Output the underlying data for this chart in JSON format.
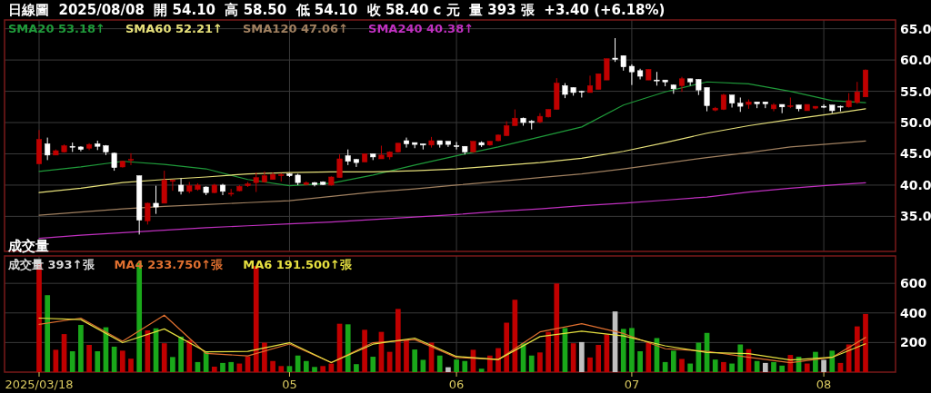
{
  "chart_data": [
    {
      "type": "candlestick",
      "title": "日線圖  2025/08/08  開 54.10  高 58.50  低 54.10  收 58.40 c 元  量 393 張  +3.40 (+6.18%)",
      "categories": [
        "2025/03/18",
        null,
        null,
        null,
        null,
        null,
        null,
        null,
        null,
        null,
        null,
        null,
        null,
        null,
        null,
        null,
        null,
        null,
        null,
        null,
        null,
        null,
        null,
        null,
        null,
        null,
        null,
        null,
        null,
        null,
        "05",
        null,
        null,
        null,
        null,
        null,
        null,
        null,
        null,
        null,
        null,
        null,
        null,
        null,
        null,
        null,
        null,
        null,
        null,
        null,
        "06",
        null,
        null,
        null,
        null,
        null,
        null,
        null,
        null,
        null,
        null,
        null,
        null,
        null,
        null,
        null,
        null,
        null,
        null,
        null,
        null,
        "07",
        null,
        null,
        null,
        null,
        null,
        null,
        null,
        null,
        null,
        null,
        null,
        null,
        null,
        null,
        null,
        null,
        null,
        null,
        null,
        null,
        null,
        null,
        "08",
        null,
        null,
        null,
        null,
        null
      ],
      "ohlc": [
        [
          43.4,
          48.8,
          43.4,
          47.3
        ],
        [
          46.6,
          47.6,
          44.0,
          44.8
        ],
        [
          44.8,
          45.7,
          44.8,
          45.5
        ],
        [
          45.3,
          46.5,
          45.2,
          46.3
        ],
        [
          46.2,
          46.8,
          45.3,
          46.1
        ],
        [
          46.1,
          46.2,
          45.4,
          45.7
        ],
        [
          45.9,
          46.7,
          45.6,
          46.5
        ],
        [
          46.6,
          47.1,
          45.6,
          46.2
        ],
        [
          46.3,
          46.4,
          44.8,
          45.3
        ],
        [
          45.1,
          45.2,
          42.3,
          42.8
        ],
        [
          42.9,
          43.9,
          42.8,
          43.8
        ],
        [
          44.0,
          45.1,
          43.2,
          44.1
        ],
        [
          41.5,
          41.5,
          32.1,
          34.4
        ],
        [
          34.3,
          37.2,
          33.7,
          37.1
        ],
        [
          37.1,
          39.9,
          35.4,
          36.5
        ],
        [
          37.1,
          42.3,
          37.1,
          40.8
        ],
        [
          40.6,
          40.8,
          39.1,
          40.8
        ],
        [
          40.0,
          41.1,
          38.5,
          39.0
        ],
        [
          39.0,
          40.5,
          38.7,
          39.9
        ],
        [
          39.3,
          40.3,
          39.1,
          40.0
        ],
        [
          39.7,
          39.8,
          38.4,
          38.8
        ],
        [
          38.8,
          40.2,
          38.7,
          40.0
        ],
        [
          40.0,
          40.2,
          38.4,
          39.0
        ],
        [
          38.6,
          39.4,
          38.2,
          38.7
        ],
        [
          39.1,
          40.0,
          39.0,
          39.8
        ],
        [
          39.9,
          40.5,
          39.7,
          40.2
        ],
        [
          40.4,
          42.0,
          38.9,
          41.2
        ],
        [
          40.5,
          42.2,
          40.4,
          41.5
        ],
        [
          40.9,
          42.0,
          40.9,
          41.7
        ],
        [
          41.5,
          41.9,
          40.6,
          41.7
        ],
        [
          41.8,
          41.9,
          41.3,
          41.5
        ],
        [
          41.6,
          41.8,
          40.0,
          40.4
        ],
        [
          40.1,
          40.6,
          40.0,
          40.4
        ],
        [
          40.4,
          40.5,
          39.8,
          40.1
        ],
        [
          40.5,
          40.6,
          40.0,
          40.1
        ],
        [
          40.0,
          41.4,
          39.9,
          41.3
        ],
        [
          41.2,
          44.9,
          41.2,
          44.2
        ],
        [
          44.7,
          45.7,
          43.2,
          43.8
        ],
        [
          44.1,
          44.2,
          42.9,
          43.6
        ],
        [
          43.7,
          45.0,
          43.7,
          45.0
        ],
        [
          45.0,
          45.0,
          44.0,
          44.5
        ],
        [
          44.2,
          46.3,
          44.2,
          44.8
        ],
        [
          44.5,
          45.4,
          44.1,
          45.3
        ],
        [
          45.3,
          46.7,
          45.2,
          46.7
        ],
        [
          47.1,
          47.6,
          46.0,
          46.6
        ],
        [
          46.8,
          46.8,
          45.9,
          46.5
        ],
        [
          46.6,
          46.6,
          45.7,
          46.4
        ],
        [
          46.4,
          47.7,
          46.0,
          47.1
        ],
        [
          47.1,
          47.1,
          46.0,
          46.5
        ],
        [
          47.0,
          47.0,
          46.1,
          46.5
        ],
        [
          46.3,
          46.9,
          45.7,
          46.2
        ],
        [
          46.2,
          46.2,
          44.9,
          45.3
        ],
        [
          45.3,
          47.0,
          45.2,
          47.0
        ],
        [
          46.8,
          47.0,
          46.1,
          46.4
        ],
        [
          46.4,
          47.0,
          46.3,
          47.0
        ],
        [
          47.1,
          48.1,
          47.0,
          48.0
        ],
        [
          47.9,
          50.2,
          47.9,
          49.5
        ],
        [
          49.5,
          52.1,
          49.5,
          50.7
        ],
        [
          50.7,
          50.8,
          49.5,
          50.0
        ],
        [
          50.2,
          50.4,
          48.9,
          50.0
        ],
        [
          50.1,
          51.5,
          49.9,
          51.0
        ],
        [
          50.9,
          52.1,
          50.8,
          52.1
        ],
        [
          52.1,
          57.1,
          52.1,
          56.3
        ],
        [
          55.9,
          56.3,
          53.9,
          54.5
        ],
        [
          55.6,
          55.6,
          54.3,
          54.8
        ],
        [
          55.0,
          55.1,
          54.0,
          54.9
        ],
        [
          54.8,
          57.5,
          54.8,
          55.9
        ],
        [
          55.3,
          57.8,
          55.3,
          57.8
        ],
        [
          56.8,
          60.2,
          56.8,
          60.2
        ],
        [
          60.3,
          63.5,
          59.7,
          60.1
        ],
        [
          60.7,
          60.7,
          58.3,
          58.9
        ],
        [
          59.0,
          59.3,
          56.0,
          58.1
        ],
        [
          58.3,
          58.6,
          56.9,
          57.4
        ],
        [
          56.8,
          58.5,
          56.8,
          58.5
        ],
        [
          56.8,
          58.1,
          55.9,
          56.7
        ],
        [
          56.8,
          56.8,
          55.8,
          56.5
        ],
        [
          56.0,
          56.1,
          54.6,
          55.4
        ],
        [
          55.9,
          57.3,
          54.9,
          57.0
        ],
        [
          57.0,
          57.0,
          55.9,
          56.5
        ],
        [
          56.9,
          56.9,
          54.4,
          55.2
        ],
        [
          55.6,
          55.6,
          51.8,
          52.7
        ],
        [
          52.0,
          52.5,
          51.8,
          52.3
        ],
        [
          52.1,
          54.6,
          52.0,
          54.4
        ],
        [
          54.4,
          54.4,
          52.4,
          53.1
        ],
        [
          53.1,
          54.0,
          51.7,
          52.6
        ],
        [
          52.9,
          53.7,
          52.2,
          53.3
        ],
        [
          53.3,
          53.3,
          52.3,
          53.0
        ],
        [
          53.3,
          53.3,
          52.3,
          53.0
        ],
        [
          52.2,
          53.1,
          51.8,
          52.8
        ],
        [
          52.9,
          52.9,
          51.5,
          52.5
        ],
        [
          52.6,
          54.0,
          52.3,
          52.7
        ],
        [
          52.8,
          52.8,
          51.8,
          52.2
        ],
        [
          51.9,
          52.9,
          51.9,
          52.9
        ],
        [
          52.3,
          52.6,
          52.1,
          52.6
        ],
        [
          52.6,
          52.9,
          52.3,
          52.5
        ],
        [
          52.8,
          52.8,
          51.5,
          51.9
        ],
        [
          52.6,
          52.7,
          51.8,
          52.5
        ],
        [
          52.5,
          54.7,
          52.4,
          53.5
        ],
        [
          53.2,
          56.5,
          53.0,
          54.9
        ],
        [
          54.1,
          58.5,
          54.1,
          58.4
        ]
      ],
      "colors": [
        "#c00000",
        "#ffffff",
        "#c00000",
        "#c00000",
        "#ffffff",
        "#ffffff",
        "#c00000",
        "#ffffff",
        "#ffffff",
        "#ffffff",
        "#c00000",
        "#c00000",
        "#ffffff",
        "#c00000",
        "#ffffff",
        "#c00000",
        "#c00000",
        "#ffffff",
        "#c00000",
        "#c00000",
        "#ffffff",
        "#c00000",
        "#ffffff",
        "#c00000",
        "#c00000",
        "#c00000",
        "#c00000",
        "#c00000",
        "#c00000",
        "#c00000",
        "#ffffff",
        "#ffffff",
        "#c00000",
        "#ffffff",
        "#ffffff",
        "#c00000",
        "#c00000",
        "#ffffff",
        "#ffffff",
        "#c00000",
        "#ffffff",
        "#c00000",
        "#c00000",
        "#c00000",
        "#ffffff",
        "#ffffff",
        "#ffffff",
        "#c00000",
        "#ffffff",
        "#ffffff",
        "#ffffff",
        "#ffffff",
        "#c00000",
        "#ffffff",
        "#c00000",
        "#c00000",
        "#c00000",
        "#c00000",
        "#ffffff",
        "#ffffff",
        "#c00000",
        "#c00000",
        "#c00000",
        "#ffffff",
        "#ffffff",
        "#ffffff",
        "#c00000",
        "#c00000",
        "#c00000",
        "#ffffff",
        "#ffffff",
        "#ffffff",
        "#ffffff",
        "#c00000",
        "#ffffff",
        "#ffffff",
        "#ffffff",
        "#c00000",
        "#ffffff",
        "#ffffff",
        "#ffffff",
        "#c00000",
        "#c00000",
        "#ffffff",
        "#ffffff",
        "#c00000",
        "#ffffff",
        "#ffffff",
        "#c00000",
        "#ffffff",
        "#c00000",
        "#ffffff",
        "#c00000",
        "#c00000",
        "#ffffff",
        "#ffffff",
        "#ffffff",
        "#c00000",
        "#c00000",
        "#c00000"
      ],
      "series": [
        {
          "name": "SMA20 53.18↑",
          "type": "line",
          "color": "#1f9a3a",
          "values": [
            42.2,
            null,
            null,
            null,
            null,
            42.9,
            null,
            null,
            null,
            null,
            43.8,
            null,
            null,
            null,
            null,
            43.3,
            null,
            null,
            null,
            null,
            42.6,
            null,
            null,
            null,
            null,
            40.9,
            null,
            null,
            null,
            null,
            39.9,
            null,
            null,
            null,
            null,
            40.3,
            null,
            null,
            null,
            null,
            41.6,
            null,
            null,
            null,
            null,
            43.2,
            null,
            null,
            null,
            null,
            44.7,
            null,
            null,
            null,
            null,
            46.1,
            null,
            null,
            null,
            null,
            47.7,
            null,
            null,
            null,
            null,
            49.3,
            null,
            null,
            null,
            null,
            52.8,
            null,
            null,
            null,
            null,
            54.9,
            null,
            null,
            null,
            null,
            56.5,
            null,
            null,
            null,
            null,
            56.2,
            null,
            null,
            null,
            null,
            55.0,
            null,
            null,
            null,
            null,
            53.5,
            null,
            null,
            null,
            53.18
          ]
        },
        {
          "name": "SMA60 52.21↑",
          "type": "line",
          "color": "#e6e07a",
          "values": [
            38.8,
            null,
            null,
            null,
            null,
            39.5,
            null,
            null,
            null,
            null,
            40.4,
            null,
            null,
            null,
            null,
            40.9,
            null,
            null,
            null,
            null,
            41.3,
            null,
            null,
            null,
            null,
            41.8,
            null,
            null,
            null,
            null,
            42.0,
            null,
            null,
            null,
            null,
            42.1,
            null,
            null,
            null,
            null,
            42.1,
            null,
            null,
            null,
            null,
            42.3,
            null,
            null,
            null,
            null,
            42.6,
            null,
            null,
            null,
            null,
            43.1,
            null,
            null,
            null,
            null,
            43.6,
            null,
            null,
            null,
            null,
            44.3,
            null,
            null,
            null,
            null,
            45.4,
            null,
            null,
            null,
            null,
            46.8,
            null,
            null,
            null,
            null,
            48.3,
            null,
            null,
            null,
            null,
            49.5,
            null,
            null,
            null,
            null,
            50.5,
            null,
            null,
            null,
            null,
            51.4,
            null,
            null,
            null,
            52.21
          ]
        },
        {
          "name": "SMA120 47.06↑",
          "type": "line",
          "color": "#a08060",
          "values": [
            35.2,
            null,
            null,
            null,
            null,
            35.7,
            null,
            null,
            null,
            null,
            36.2,
            null,
            null,
            null,
            null,
            36.6,
            null,
            null,
            null,
            null,
            36.9,
            null,
            null,
            null,
            null,
            37.2,
            null,
            null,
            null,
            null,
            37.5,
            null,
            null,
            null,
            null,
            38.2,
            null,
            null,
            null,
            null,
            38.9,
            null,
            null,
            null,
            null,
            39.4,
            null,
            null,
            null,
            null,
            40.0,
            null,
            null,
            null,
            null,
            40.6,
            null,
            null,
            null,
            null,
            41.2,
            null,
            null,
            null,
            null,
            41.8,
            null,
            null,
            null,
            null,
            42.6,
            null,
            null,
            null,
            null,
            43.5,
            null,
            null,
            null,
            null,
            44.4,
            null,
            null,
            null,
            null,
            45.2,
            null,
            null,
            null,
            null,
            46.1,
            null,
            null,
            null,
            null,
            46.6,
            null,
            null,
            null,
            47.06
          ]
        },
        {
          "name": "SMA240 40.38↑",
          "type": "line",
          "color": "#c030c0",
          "values": [
            31.5,
            null,
            null,
            null,
            null,
            32.0,
            null,
            null,
            null,
            null,
            32.4,
            null,
            null,
            null,
            null,
            32.8,
            null,
            null,
            null,
            null,
            33.2,
            null,
            null,
            null,
            null,
            33.5,
            null,
            null,
            null,
            null,
            33.8,
            null,
            null,
            null,
            null,
            34.1,
            null,
            null,
            null,
            null,
            34.5,
            null,
            null,
            null,
            null,
            34.9,
            null,
            null,
            null,
            null,
            35.3,
            null,
            null,
            null,
            null,
            35.8,
            null,
            null,
            null,
            null,
            36.2,
            null,
            null,
            null,
            null,
            36.7,
            null,
            null,
            null,
            null,
            37.1,
            null,
            null,
            null,
            null,
            37.6,
            null,
            null,
            null,
            null,
            38.1,
            null,
            null,
            null,
            null,
            38.9,
            null,
            null,
            null,
            null,
            39.5,
            null,
            null,
            null,
            null,
            40.0,
            null,
            null,
            null,
            40.38
          ]
        }
      ],
      "ylim": [
        29.4,
        66.4
      ],
      "yticks": [
        {
          "value": 35,
          "label": "35.0"
        },
        {
          "value": 40,
          "label": "40.0"
        },
        {
          "value": 45,
          "label": "45.0"
        },
        {
          "value": 50,
          "label": "50.0"
        },
        {
          "value": 55,
          "label": "55.0"
        },
        {
          "value": 60,
          "label": "60.0"
        },
        {
          "value": 65,
          "label": "65.0"
        }
      ],
      "grid": true,
      "legend": "top left",
      "tick_labels": "y"
    },
    {
      "type": "bar",
      "title": "成交量",
      "categories": [
        "2025/03/18",
        null,
        null,
        null,
        null,
        null,
        null,
        null,
        null,
        null,
        null,
        null,
        null,
        null,
        null,
        null,
        null,
        null,
        null,
        null,
        null,
        null,
        null,
        null,
        null,
        null,
        null,
        null,
        null,
        null,
        "05",
        null,
        null,
        null,
        null,
        null,
        null,
        null,
        null,
        null,
        null,
        null,
        null,
        null,
        null,
        null,
        null,
        null,
        null,
        null,
        "06",
        null,
        null,
        null,
        null,
        null,
        null,
        null,
        null,
        null,
        null,
        null,
        null,
        null,
        null,
        null,
        null,
        null,
        null,
        null,
        null,
        "07",
        null,
        null,
        null,
        null,
        null,
        null,
        null,
        null,
        null,
        null,
        null,
        null,
        null,
        null,
        null,
        null,
        null,
        null,
        null,
        null,
        null,
        null,
        "08",
        null,
        null,
        null,
        null,
        null
      ],
      "series": [
        {
          "name": "成交量 393↑張",
          "type": "bar",
          "values": [
            738,
            520,
            151,
            257,
            141,
            319,
            184,
            141,
            303,
            172,
            145,
            91,
            738,
            282,
            296,
            195,
            102,
            240,
            216,
            68,
            137,
            37,
            62,
            68,
            58,
            106,
            717,
            199,
            75,
            41,
            41,
            112,
            75,
            35,
            41,
            58,
            327,
            323,
            54,
            286,
            104,
            272,
            137,
            427,
            220,
            153,
            83,
            199,
            112,
            33,
            85,
            75,
            151,
            23,
            112,
            162,
            334,
            489,
            195,
            112,
            133,
            272,
            599,
            298,
            195,
            203,
            99,
            184,
            255,
            410,
            292,
            298,
            141,
            199,
            230,
            68,
            145,
            89,
            58,
            199,
            265,
            85,
            68,
            58,
            187,
            155,
            75,
            62,
            68,
            44,
            116,
            104,
            58,
            137,
            83,
            145,
            62,
            187,
            309,
            393
          ],
          "colors": [
            "#c00000",
            "#1aa81a",
            "#c00000",
            "#c00000",
            "#1aa81a",
            "#1aa81a",
            "#c00000",
            "#1aa81a",
            "#1aa81a",
            "#1aa81a",
            "#c00000",
            "#c00000",
            "#1aa81a",
            "#c00000",
            "#1aa81a",
            "#c00000",
            "#1aa81a",
            "#1aa81a",
            "#c00000",
            "#1aa81a",
            "#1aa81a",
            "#c00000",
            "#1aa81a",
            "#1aa81a",
            "#c00000",
            "#c00000",
            "#c00000",
            "#c00000",
            "#c00000",
            "#c00000",
            "#1aa81a",
            "#1aa81a",
            "#1aa81a",
            "#1aa81a",
            "#c00000",
            "#c00000",
            "#c00000",
            "#1aa81a",
            "#1aa81a",
            "#c00000",
            "#1aa81a",
            "#c00000",
            "#c00000",
            "#c00000",
            "#c00000",
            "#1aa81a",
            "#1aa81a",
            "#c00000",
            "#1aa81a",
            "#c0c0c0",
            "#1aa81a",
            "#1aa81a",
            "#c00000",
            "#1aa81a",
            "#c00000",
            "#c00000",
            "#c00000",
            "#c00000",
            "#1aa81a",
            "#1aa81a",
            "#c00000",
            "#c00000",
            "#c00000",
            "#1aa81a",
            "#c00000",
            "#c0c0c0",
            "#c00000",
            "#c00000",
            "#c00000",
            "#c0c0c0",
            "#1aa81a",
            "#1aa81a",
            "#1aa81a",
            "#c00000",
            "#1aa81a",
            "#1aa81a",
            "#1aa81a",
            "#c00000",
            "#1aa81a",
            "#1aa81a",
            "#1aa81a",
            "#1aa81a",
            "#c00000",
            "#1aa81a",
            "#1aa81a",
            "#c00000",
            "#1aa81a",
            "#c0c0c0",
            "#1aa81a",
            "#1aa81a",
            "#c00000",
            "#1aa81a",
            "#c00000",
            "#1aa81a",
            "#c0c0c0",
            "#1aa81a",
            "#c00000",
            "#c00000",
            "#c00000",
            "#c00000"
          ],
          "color": "#d8d8d8"
        },
        {
          "name": "MA4 233.750↑張",
          "type": "line",
          "color": "#e07030",
          "values": [
            323,
            null,
            null,
            null,
            null,
            365,
            null,
            null,
            null,
            null,
            209,
            null,
            null,
            null,
            null,
            385,
            null,
            null,
            null,
            null,
            126,
            null,
            null,
            null,
            null,
            110,
            null,
            null,
            null,
            null,
            190,
            null,
            null,
            null,
            null,
            64,
            null,
            null,
            null,
            null,
            199,
            null,
            null,
            null,
            null,
            220,
            null,
            null,
            null,
            null,
            99,
            null,
            null,
            null,
            null,
            85,
            null,
            null,
            null,
            null,
            272,
            null,
            null,
            null,
            null,
            327,
            null,
            null,
            null,
            null,
            261,
            null,
            null,
            null,
            null,
            158,
            null,
            null,
            null,
            null,
            141,
            null,
            null,
            null,
            null,
            100,
            null,
            null,
            null,
            null,
            64,
            null,
            null,
            null,
            null,
            100,
            null,
            null,
            null,
            233.75
          ]
        },
        {
          "name": "MA6 191.500↑張",
          "type": "line",
          "color": "#e6e040",
          "values": [
            365,
            null,
            null,
            null,
            null,
            355,
            null,
            null,
            null,
            null,
            199,
            null,
            null,
            null,
            null,
            292,
            null,
            null,
            null,
            null,
            137,
            null,
            null,
            null,
            null,
            140,
            null,
            null,
            null,
            null,
            199,
            null,
            null,
            null,
            null,
            64,
            null,
            null,
            null,
            null,
            189,
            null,
            null,
            null,
            null,
            230,
            null,
            null,
            null,
            null,
            106,
            null,
            null,
            null,
            null,
            85,
            null,
            null,
            null,
            null,
            240,
            null,
            null,
            null,
            null,
            277,
            null,
            null,
            null,
            null,
            245,
            null,
            null,
            null,
            null,
            178,
            null,
            null,
            null,
            null,
            133,
            null,
            null,
            null,
            null,
            125,
            null,
            null,
            null,
            null,
            82,
            null,
            null,
            null,
            null,
            100,
            null,
            null,
            null,
            191.5
          ]
        }
      ],
      "ylim": [
        0,
        785
      ],
      "yticks": [
        200,
        400,
        600
      ],
      "grid": true,
      "legend": "top left"
    }
  ]
}
